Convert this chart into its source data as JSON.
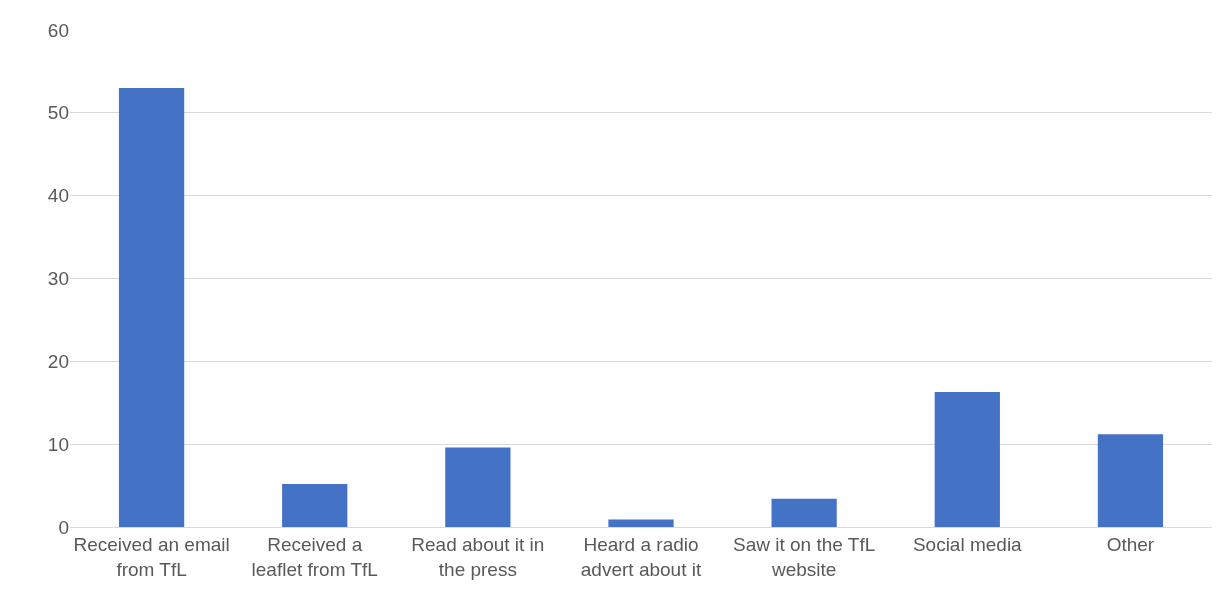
{
  "chart_data": {
    "type": "bar",
    "categories": [
      "Received an email from TfL",
      "Received a leaflet from TfL",
      "Read about it in the press",
      "Heard a radio advert about it",
      "Saw it on the TfL website",
      "Social media",
      "Other"
    ],
    "values": [
      53.0,
      5.2,
      9.6,
      0.9,
      3.4,
      16.3,
      11.2
    ],
    "color": "#4472c4",
    "ylim": [
      0,
      60
    ],
    "yticks": [
      0,
      10,
      20,
      30,
      40,
      50,
      60
    ],
    "grid": "y"
  }
}
